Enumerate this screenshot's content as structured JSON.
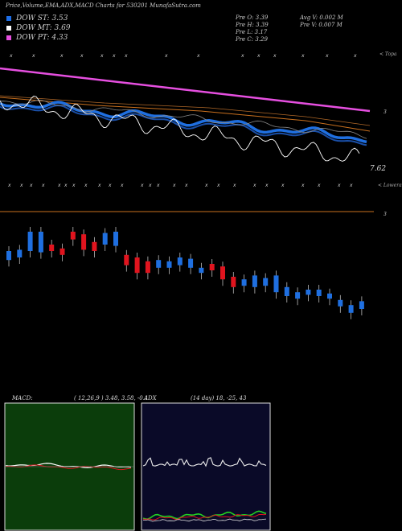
{
  "header": {
    "title": "Price,Volume,EMA,ADX,MACD Charts for 530201 MunafaSutra.com"
  },
  "legend": [
    {
      "label": "DOW ST: 3.53",
      "color": "#1e6fe8"
    },
    {
      "label": "DOW MT: 3.69",
      "color": "#ffffff"
    },
    {
      "label": "DOW PT: 4.33",
      "color": "#e64fe0"
    }
  ],
  "stats": {
    "prev_open": "Pre   O: 3.39",
    "prev_high": "Pre   H: 3.39",
    "prev_low": "Pre   L: 3.17",
    "prev_close": "Pre   C: 3.29",
    "avg_volume": "Avg V: 0.002  M",
    "prev_volume": "Pre   V: 0.007 M"
  },
  "labels": {
    "price_marker": "3",
    "last_price": "7.62",
    "topa": "< Topa",
    "lower_marker": "3",
    "lower_right": "< Lowera",
    "macd_title": "MACD:",
    "macd_values": "( 12,26,9 ) 3.48, 3.58, -0.1",
    "adx_title": "ADX",
    "adx_values": "(14  day) 18,  -25,  43"
  },
  "colors": {
    "up_candle": "#1f6fe0",
    "down_candle": "#e0141e",
    "pink_line": "#e64fe0",
    "orange_line": "#c9701e",
    "blue_band": "#1f6fe0",
    "white_line": "#ffffff",
    "macd_bg": "#0b3d0b",
    "adx_bg": "#0a0a28"
  },
  "chart_data": [
    {
      "type": "line",
      "title": "Price,Volume,EMA,ADX,MACD Charts for 530201 MunafaSutra.com",
      "series": [
        {
          "name": "DOW PT: 4.33",
          "values": [
            4.33
          ]
        },
        {
          "name": "DOW MT: 3.69",
          "values": [
            3.69
          ]
        },
        {
          "name": "DOW ST: 3.53",
          "values": [
            3.53
          ]
        }
      ]
    },
    {
      "type": "bar",
      "title": "",
      "note": "candlesticks, open/close relative units",
      "candles": [
        [
          0.52,
          0.45
        ],
        [
          0.5,
          0.44
        ],
        [
          0.45,
          0.3
        ],
        [
          0.46,
          0.3
        ],
        [
          0.4,
          0.45
        ],
        [
          0.43,
          0.48
        ],
        [
          0.3,
          0.36
        ],
        [
          0.32,
          0.44
        ],
        [
          0.38,
          0.45
        ],
        [
          0.4,
          0.31
        ],
        [
          0.41,
          0.3
        ],
        [
          0.48,
          0.56
        ],
        [
          0.5,
          0.62
        ],
        [
          0.53,
          0.62
        ],
        [
          0.58,
          0.52
        ],
        [
          0.58,
          0.53
        ],
        [
          0.56,
          0.5
        ],
        [
          0.58,
          0.51
        ],
        [
          0.62,
          0.58
        ],
        [
          0.55,
          0.6
        ],
        [
          0.57,
          0.67
        ],
        [
          0.65,
          0.73
        ],
        [
          0.72,
          0.67
        ],
        [
          0.73,
          0.64
        ],
        [
          0.72,
          0.66
        ],
        [
          0.77,
          0.64
        ],
        [
          0.8,
          0.73
        ],
        [
          0.82,
          0.77
        ],
        [
          0.79,
          0.75
        ],
        [
          0.8,
          0.75
        ],
        [
          0.82,
          0.78
        ],
        [
          0.88,
          0.83
        ],
        [
          0.93,
          0.87
        ],
        [
          0.9,
          0.84
        ]
      ]
    }
  ]
}
